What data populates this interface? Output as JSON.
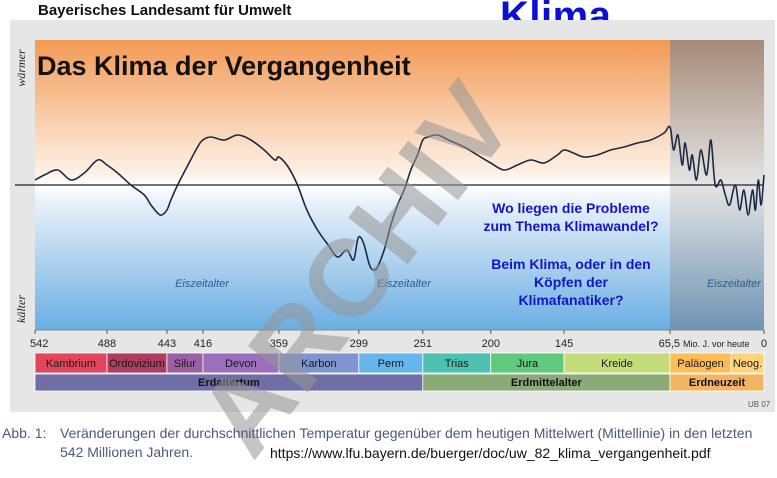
{
  "header": {
    "org": "Bayerisches Landesamt für Umwelt",
    "keyword": "Klima"
  },
  "chart_data": {
    "type": "line",
    "title": "Das Klima der Vergangenheit",
    "y_top_label": "wärmer",
    "y_bottom_label": "kälter",
    "x_unit_label": "Mio. J. vor heute",
    "x_ticks": [
      542,
      488,
      443,
      416,
      359,
      299,
      251,
      200,
      145,
      65.5,
      0
    ],
    "xlim": [
      542,
      0
    ],
    "ylim": [
      -1,
      1
    ],
    "series": [
      {
        "x": [
          542,
          535,
          525,
          515,
          505,
          495,
          488,
          480,
          470,
          460,
          455,
          450,
          447,
          443,
          440,
          435,
          428,
          420,
          416,
          410,
          400,
          390,
          380,
          370,
          362,
          359,
          352,
          345,
          338,
          330,
          322,
          315,
          308,
          303,
          300,
          298,
          295,
          291,
          288,
          285,
          280,
          275,
          270,
          265,
          260,
          255,
          251,
          247,
          240,
          230,
          220,
          210,
          200,
          190,
          180,
          170,
          160,
          150,
          145,
          138,
          130,
          120,
          110,
          100,
          90,
          80,
          70,
          65.5,
          63,
          60,
          57,
          55,
          52,
          50,
          47,
          44,
          40,
          37,
          34,
          30,
          27,
          24,
          20,
          17,
          14,
          11,
          8,
          6,
          4,
          2,
          0
        ],
        "values": [
          0.05,
          0.1,
          0.15,
          0.05,
          0.12,
          0.25,
          0.2,
          0.12,
          0.0,
          -0.1,
          -0.2,
          -0.28,
          -0.3,
          -0.25,
          -0.15,
          0.0,
          0.18,
          0.38,
          0.45,
          0.48,
          0.45,
          0.5,
          0.45,
          0.35,
          0.25,
          0.28,
          0.18,
          0.0,
          -0.25,
          -0.45,
          -0.6,
          -0.72,
          -0.65,
          -0.75,
          -0.55,
          -0.52,
          -0.6,
          -0.8,
          -0.85,
          -0.82,
          -0.65,
          -0.4,
          -0.2,
          -0.05,
          0.15,
          0.3,
          0.45,
          0.48,
          0.5,
          0.44,
          0.38,
          0.3,
          0.22,
          0.15,
          0.2,
          0.25,
          0.22,
          0.3,
          0.35,
          0.32,
          0.28,
          0.3,
          0.35,
          0.38,
          0.42,
          0.45,
          0.52,
          0.58,
          0.35,
          0.5,
          0.2,
          0.42,
          0.15,
          0.3,
          0.05,
          0.35,
          0.1,
          0.45,
          0.0,
          0.05,
          -0.1,
          -0.2,
          0.0,
          -0.25,
          -0.05,
          -0.3,
          -0.05,
          -0.25,
          0.05,
          -0.2,
          0.1
        ]
      }
    ],
    "annotations": [
      "Eiszeitalter",
      "Eiszeitalter",
      "Eiszeitalter"
    ],
    "question": [
      "Wo liegen die Probleme",
      "zum Thema Klimawandel?",
      "Beim Klima, oder in den",
      "Köpfen der",
      "Klimafanatiker?"
    ],
    "periods": [
      {
        "name": "Kambrium",
        "from": 542,
        "to": 488,
        "color": "#e1465d"
      },
      {
        "name": "Ordovizium",
        "from": 488,
        "to": 443,
        "color": "#b03d5f"
      },
      {
        "name": "Silur",
        "from": 443,
        "to": 416,
        "color": "#9d5fa4"
      },
      {
        "name": "Devon",
        "from": 416,
        "to": 359,
        "color": "#9b6fbe"
      },
      {
        "name": "Karbon",
        "from": 359,
        "to": 299,
        "color": "#7f95d0"
      },
      {
        "name": "Perm",
        "from": 299,
        "to": 251,
        "color": "#66b6ee"
      },
      {
        "name": "Trias",
        "from": 251,
        "to": 200,
        "color": "#4dc2b2"
      },
      {
        "name": "Jura",
        "from": 200,
        "to": 145,
        "color": "#5fca7c"
      },
      {
        "name": "Kreide",
        "from": 145,
        "to": 65.5,
        "color": "#c4dd7a"
      },
      {
        "name": "Paläogen",
        "from": 65.5,
        "to": 23,
        "color": "#ffbe55"
      },
      {
        "name": "Neog.",
        "from": 23,
        "to": 0,
        "color": "#ffd37a"
      }
    ],
    "eras": [
      {
        "name": "Erdaltertum",
        "from": 542,
        "to": 251,
        "color": "#6f6fa5"
      },
      {
        "name": "Erdmittelalter",
        "from": 251,
        "to": 65.5,
        "color": "#8aab78"
      },
      {
        "name": "Erdneuzeit",
        "from": 65.5,
        "to": 0,
        "color": "#f3b461"
      }
    ],
    "code": "UB 07"
  },
  "caption": {
    "num": "Abb. 1:",
    "text": "Veränderungen der durchschnittlichen Temperatur gegenüber dem heutigen Mittelwert (Mittellinie) in den letzten 542 Millionen Jahren."
  },
  "url": "https://www.lfu.bayern.de/buerger/doc/uw_82_klima_vergangenheit.pdf",
  "watermark": "ARCHIV"
}
